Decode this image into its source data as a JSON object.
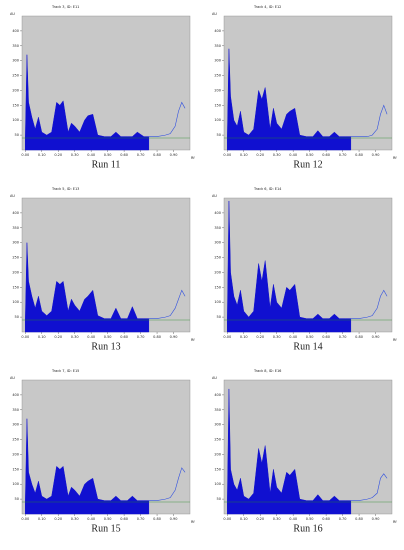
{
  "chart_data": [
    {
      "type": "line",
      "title": "Track 3, ID: E11",
      "caption": "Run 11",
      "ylabel": "AU",
      "xlabel": "Rf",
      "xlim": [
        -0.02,
        1.0
      ],
      "ylim": [
        0,
        450
      ],
      "xticks": [
        {
          "value": 0,
          "label": "0.00"
        },
        {
          "value": 0.1,
          "label": "0.10"
        },
        {
          "value": 0.2,
          "label": "0.20"
        },
        {
          "value": 0.3,
          "label": "0.30"
        },
        {
          "value": 0.4,
          "label": "0.40"
        },
        {
          "value": 0.5,
          "label": "0.50"
        },
        {
          "value": 0.6,
          "label": "0.60"
        },
        {
          "value": 0.7,
          "label": "0.70"
        },
        {
          "value": 0.8,
          "label": "0.80"
        },
        {
          "value": 0.9,
          "label": "0.90"
        }
      ],
      "yticks": [
        50,
        100,
        150,
        200,
        250,
        300,
        350,
        400
      ],
      "series": [
        {
          "color": "#1010d0",
          "fill": true,
          "x": [
            0,
            0.01,
            0.02,
            0.04,
            0.06,
            0.08,
            0.1,
            0.13,
            0.16,
            0.19,
            0.21,
            0.23,
            0.26,
            0.28,
            0.3,
            0.33,
            0.36,
            0.38,
            0.41,
            0.44,
            0.48,
            0.52,
            0.55,
            0.58,
            0.62,
            0.65,
            0.68,
            0.72,
            0.75
          ],
          "values": [
            40,
            320,
            160,
            110,
            70,
            110,
            60,
            50,
            60,
            160,
            150,
            165,
            60,
            90,
            80,
            60,
            100,
            115,
            120,
            50,
            45,
            45,
            60,
            45,
            45,
            45,
            60,
            45,
            45
          ]
        },
        {
          "color": "#3050e0",
          "fill": false,
          "x": [
            0.75,
            0.8,
            0.85,
            0.88,
            0.91,
            0.93,
            0.95,
            0.97
          ],
          "values": [
            45,
            45,
            50,
            55,
            80,
            130,
            160,
            140
          ]
        }
      ]
    },
    {
      "type": "line",
      "title": "Track 4, ID: E12",
      "caption": "Run 12",
      "ylabel": "AU",
      "xlabel": "Rf",
      "xlim": [
        -0.02,
        1.0
      ],
      "ylim": [
        0,
        450
      ],
      "xticks": [
        {
          "value": 0,
          "label": "0.00"
        },
        {
          "value": 0.1,
          "label": "0.10"
        },
        {
          "value": 0.2,
          "label": "0.20"
        },
        {
          "value": 0.3,
          "label": "0.30"
        },
        {
          "value": 0.4,
          "label": "0.40"
        },
        {
          "value": 0.5,
          "label": "0.50"
        },
        {
          "value": 0.6,
          "label": "0.60"
        },
        {
          "value": 0.7,
          "label": "0.70"
        },
        {
          "value": 0.8,
          "label": "0.80"
        },
        {
          "value": 0.9,
          "label": "0.90"
        }
      ],
      "yticks": [
        50,
        100,
        150,
        200,
        250,
        300,
        350,
        400
      ],
      "series": [
        {
          "color": "#1010d0",
          "fill": true,
          "x": [
            0,
            0.01,
            0.02,
            0.04,
            0.06,
            0.08,
            0.1,
            0.13,
            0.16,
            0.19,
            0.21,
            0.23,
            0.26,
            0.28,
            0.3,
            0.33,
            0.36,
            0.38,
            0.41,
            0.44,
            0.48,
            0.52,
            0.55,
            0.58,
            0.62,
            0.65,
            0.68,
            0.72,
            0.75
          ],
          "values": [
            40,
            340,
            180,
            100,
            80,
            130,
            60,
            50,
            70,
            200,
            170,
            210,
            70,
            140,
            90,
            70,
            120,
            130,
            140,
            50,
            45,
            45,
            65,
            45,
            45,
            60,
            45,
            45,
            45
          ]
        },
        {
          "color": "#3050e0",
          "fill": false,
          "x": [
            0.75,
            0.8,
            0.85,
            0.88,
            0.91,
            0.93,
            0.95,
            0.97
          ],
          "values": [
            45,
            45,
            45,
            50,
            70,
            120,
            150,
            120
          ]
        }
      ]
    },
    {
      "type": "line",
      "title": "Track 5, ID: E13",
      "caption": "Run 13",
      "ylabel": "AU",
      "xlabel": "Rf",
      "xlim": [
        -0.02,
        1.0
      ],
      "ylim": [
        0,
        450
      ],
      "xticks": [
        {
          "value": 0,
          "label": "0.00"
        },
        {
          "value": 0.1,
          "label": "0.10"
        },
        {
          "value": 0.2,
          "label": "0.20"
        },
        {
          "value": 0.3,
          "label": "0.30"
        },
        {
          "value": 0.4,
          "label": "0.40"
        },
        {
          "value": 0.5,
          "label": "0.50"
        },
        {
          "value": 0.6,
          "label": "0.60"
        },
        {
          "value": 0.7,
          "label": "0.70"
        },
        {
          "value": 0.8,
          "label": "0.80"
        },
        {
          "value": 0.9,
          "label": "0.90"
        }
      ],
      "yticks": [
        50,
        100,
        150,
        200,
        250,
        300,
        350,
        400
      ],
      "series": [
        {
          "color": "#1010d0",
          "fill": true,
          "x": [
            0,
            0.01,
            0.02,
            0.04,
            0.06,
            0.08,
            0.1,
            0.13,
            0.16,
            0.19,
            0.21,
            0.23,
            0.26,
            0.28,
            0.3,
            0.33,
            0.36,
            0.38,
            0.41,
            0.44,
            0.48,
            0.52,
            0.55,
            0.58,
            0.62,
            0.65,
            0.68,
            0.72,
            0.75
          ],
          "values": [
            40,
            300,
            170,
            120,
            80,
            120,
            70,
            55,
            70,
            170,
            160,
            170,
            70,
            110,
            90,
            70,
            110,
            120,
            140,
            55,
            45,
            45,
            80,
            45,
            45,
            85,
            45,
            45,
            45
          ]
        },
        {
          "color": "#3050e0",
          "fill": false,
          "x": [
            0.75,
            0.8,
            0.85,
            0.88,
            0.91,
            0.93,
            0.95,
            0.97
          ],
          "values": [
            45,
            45,
            50,
            55,
            80,
            110,
            140,
            120
          ]
        }
      ]
    },
    {
      "type": "line",
      "title": "Track 6, ID: E14",
      "caption": "Run 14",
      "ylabel": "AU",
      "xlabel": "Rf",
      "xlim": [
        -0.02,
        1.0
      ],
      "ylim": [
        0,
        450
      ],
      "xticks": [
        {
          "value": 0,
          "label": "0.00"
        },
        {
          "value": 0.1,
          "label": "0.10"
        },
        {
          "value": 0.2,
          "label": "0.20"
        },
        {
          "value": 0.3,
          "label": "0.30"
        },
        {
          "value": 0.4,
          "label": "0.40"
        },
        {
          "value": 0.5,
          "label": "0.50"
        },
        {
          "value": 0.6,
          "label": "0.60"
        },
        {
          "value": 0.7,
          "label": "0.70"
        },
        {
          "value": 0.8,
          "label": "0.80"
        },
        {
          "value": 0.9,
          "label": "0.90"
        }
      ],
      "yticks": [
        50,
        100,
        150,
        200,
        250,
        300,
        350,
        400
      ],
      "series": [
        {
          "color": "#1010d0",
          "fill": true,
          "x": [
            0,
            0.01,
            0.02,
            0.04,
            0.06,
            0.08,
            0.1,
            0.13,
            0.16,
            0.19,
            0.21,
            0.23,
            0.26,
            0.28,
            0.3,
            0.33,
            0.36,
            0.38,
            0.41,
            0.44,
            0.48,
            0.52,
            0.55,
            0.58,
            0.62,
            0.65,
            0.68,
            0.72,
            0.75
          ],
          "values": [
            40,
            440,
            200,
            120,
            90,
            140,
            70,
            50,
            70,
            230,
            170,
            240,
            80,
            160,
            100,
            80,
            150,
            140,
            160,
            50,
            45,
            45,
            60,
            45,
            45,
            60,
            45,
            45,
            45
          ]
        },
        {
          "color": "#3050e0",
          "fill": false,
          "x": [
            0.75,
            0.8,
            0.85,
            0.88,
            0.91,
            0.93,
            0.95,
            0.97
          ],
          "values": [
            45,
            45,
            50,
            55,
            80,
            120,
            140,
            120
          ]
        }
      ]
    },
    {
      "type": "line",
      "title": "Track 7, ID: E15",
      "caption": "Run 15",
      "ylabel": "AU",
      "xlabel": "Rf",
      "xlim": [
        -0.02,
        1.0
      ],
      "ylim": [
        0,
        450
      ],
      "xticks": [
        {
          "value": 0,
          "label": "0.00"
        },
        {
          "value": 0.1,
          "label": "0.10"
        },
        {
          "value": 0.2,
          "label": "0.20"
        },
        {
          "value": 0.3,
          "label": "0.30"
        },
        {
          "value": 0.4,
          "label": "0.40"
        },
        {
          "value": 0.5,
          "label": "0.50"
        },
        {
          "value": 0.6,
          "label": "0.60"
        },
        {
          "value": 0.7,
          "label": "0.70"
        },
        {
          "value": 0.8,
          "label": "0.80"
        },
        {
          "value": 0.9,
          "label": "0.90"
        }
      ],
      "yticks": [
        50,
        100,
        150,
        200,
        250,
        300,
        350,
        400
      ],
      "series": [
        {
          "color": "#1010d0",
          "fill": true,
          "x": [
            0,
            0.01,
            0.02,
            0.04,
            0.06,
            0.08,
            0.1,
            0.13,
            0.16,
            0.19,
            0.21,
            0.23,
            0.26,
            0.28,
            0.3,
            0.33,
            0.36,
            0.38,
            0.41,
            0.44,
            0.48,
            0.52,
            0.55,
            0.58,
            0.62,
            0.65,
            0.68,
            0.72,
            0.75
          ],
          "values": [
            40,
            320,
            140,
            100,
            70,
            110,
            60,
            50,
            60,
            160,
            150,
            160,
            60,
            90,
            80,
            60,
            100,
            110,
            120,
            50,
            45,
            45,
            60,
            45,
            45,
            60,
            45,
            45,
            45
          ]
        },
        {
          "color": "#3050e0",
          "fill": false,
          "x": [
            0.75,
            0.8,
            0.85,
            0.88,
            0.91,
            0.93,
            0.95,
            0.97
          ],
          "values": [
            45,
            45,
            50,
            55,
            80,
            120,
            155,
            140
          ]
        }
      ]
    },
    {
      "type": "line",
      "title": "Track 8, ID: E16",
      "caption": "Run 16",
      "ylabel": "AU",
      "xlabel": "Rf",
      "xlim": [
        -0.02,
        1.0
      ],
      "ylim": [
        0,
        450
      ],
      "xticks": [
        {
          "value": 0,
          "label": "0.00"
        },
        {
          "value": 0.1,
          "label": "0.10"
        },
        {
          "value": 0.2,
          "label": "0.20"
        },
        {
          "value": 0.3,
          "label": "0.30"
        },
        {
          "value": 0.4,
          "label": "0.40"
        },
        {
          "value": 0.5,
          "label": "0.50"
        },
        {
          "value": 0.6,
          "label": "0.60"
        },
        {
          "value": 0.7,
          "label": "0.70"
        },
        {
          "value": 0.8,
          "label": "0.80"
        },
        {
          "value": 0.9,
          "label": "0.90"
        }
      ],
      "yticks": [
        50,
        100,
        150,
        200,
        250,
        300,
        350,
        400
      ],
      "series": [
        {
          "color": "#1010d0",
          "fill": true,
          "x": [
            0,
            0.01,
            0.02,
            0.04,
            0.06,
            0.08,
            0.1,
            0.13,
            0.16,
            0.19,
            0.21,
            0.23,
            0.26,
            0.28,
            0.3,
            0.33,
            0.36,
            0.38,
            0.41,
            0.44,
            0.48,
            0.52,
            0.55,
            0.58,
            0.62,
            0.65,
            0.68,
            0.72,
            0.75
          ],
          "values": [
            40,
            420,
            150,
            100,
            80,
            120,
            60,
            50,
            70,
            220,
            170,
            230,
            70,
            150,
            90,
            70,
            140,
            130,
            150,
            50,
            45,
            45,
            65,
            45,
            45,
            60,
            45,
            45,
            45
          ]
        },
        {
          "color": "#3050e0",
          "fill": false,
          "x": [
            0.75,
            0.8,
            0.85,
            0.88,
            0.91,
            0.93,
            0.95,
            0.97
          ],
          "values": [
            45,
            45,
            50,
            55,
            70,
            120,
            135,
            120
          ]
        }
      ]
    }
  ]
}
